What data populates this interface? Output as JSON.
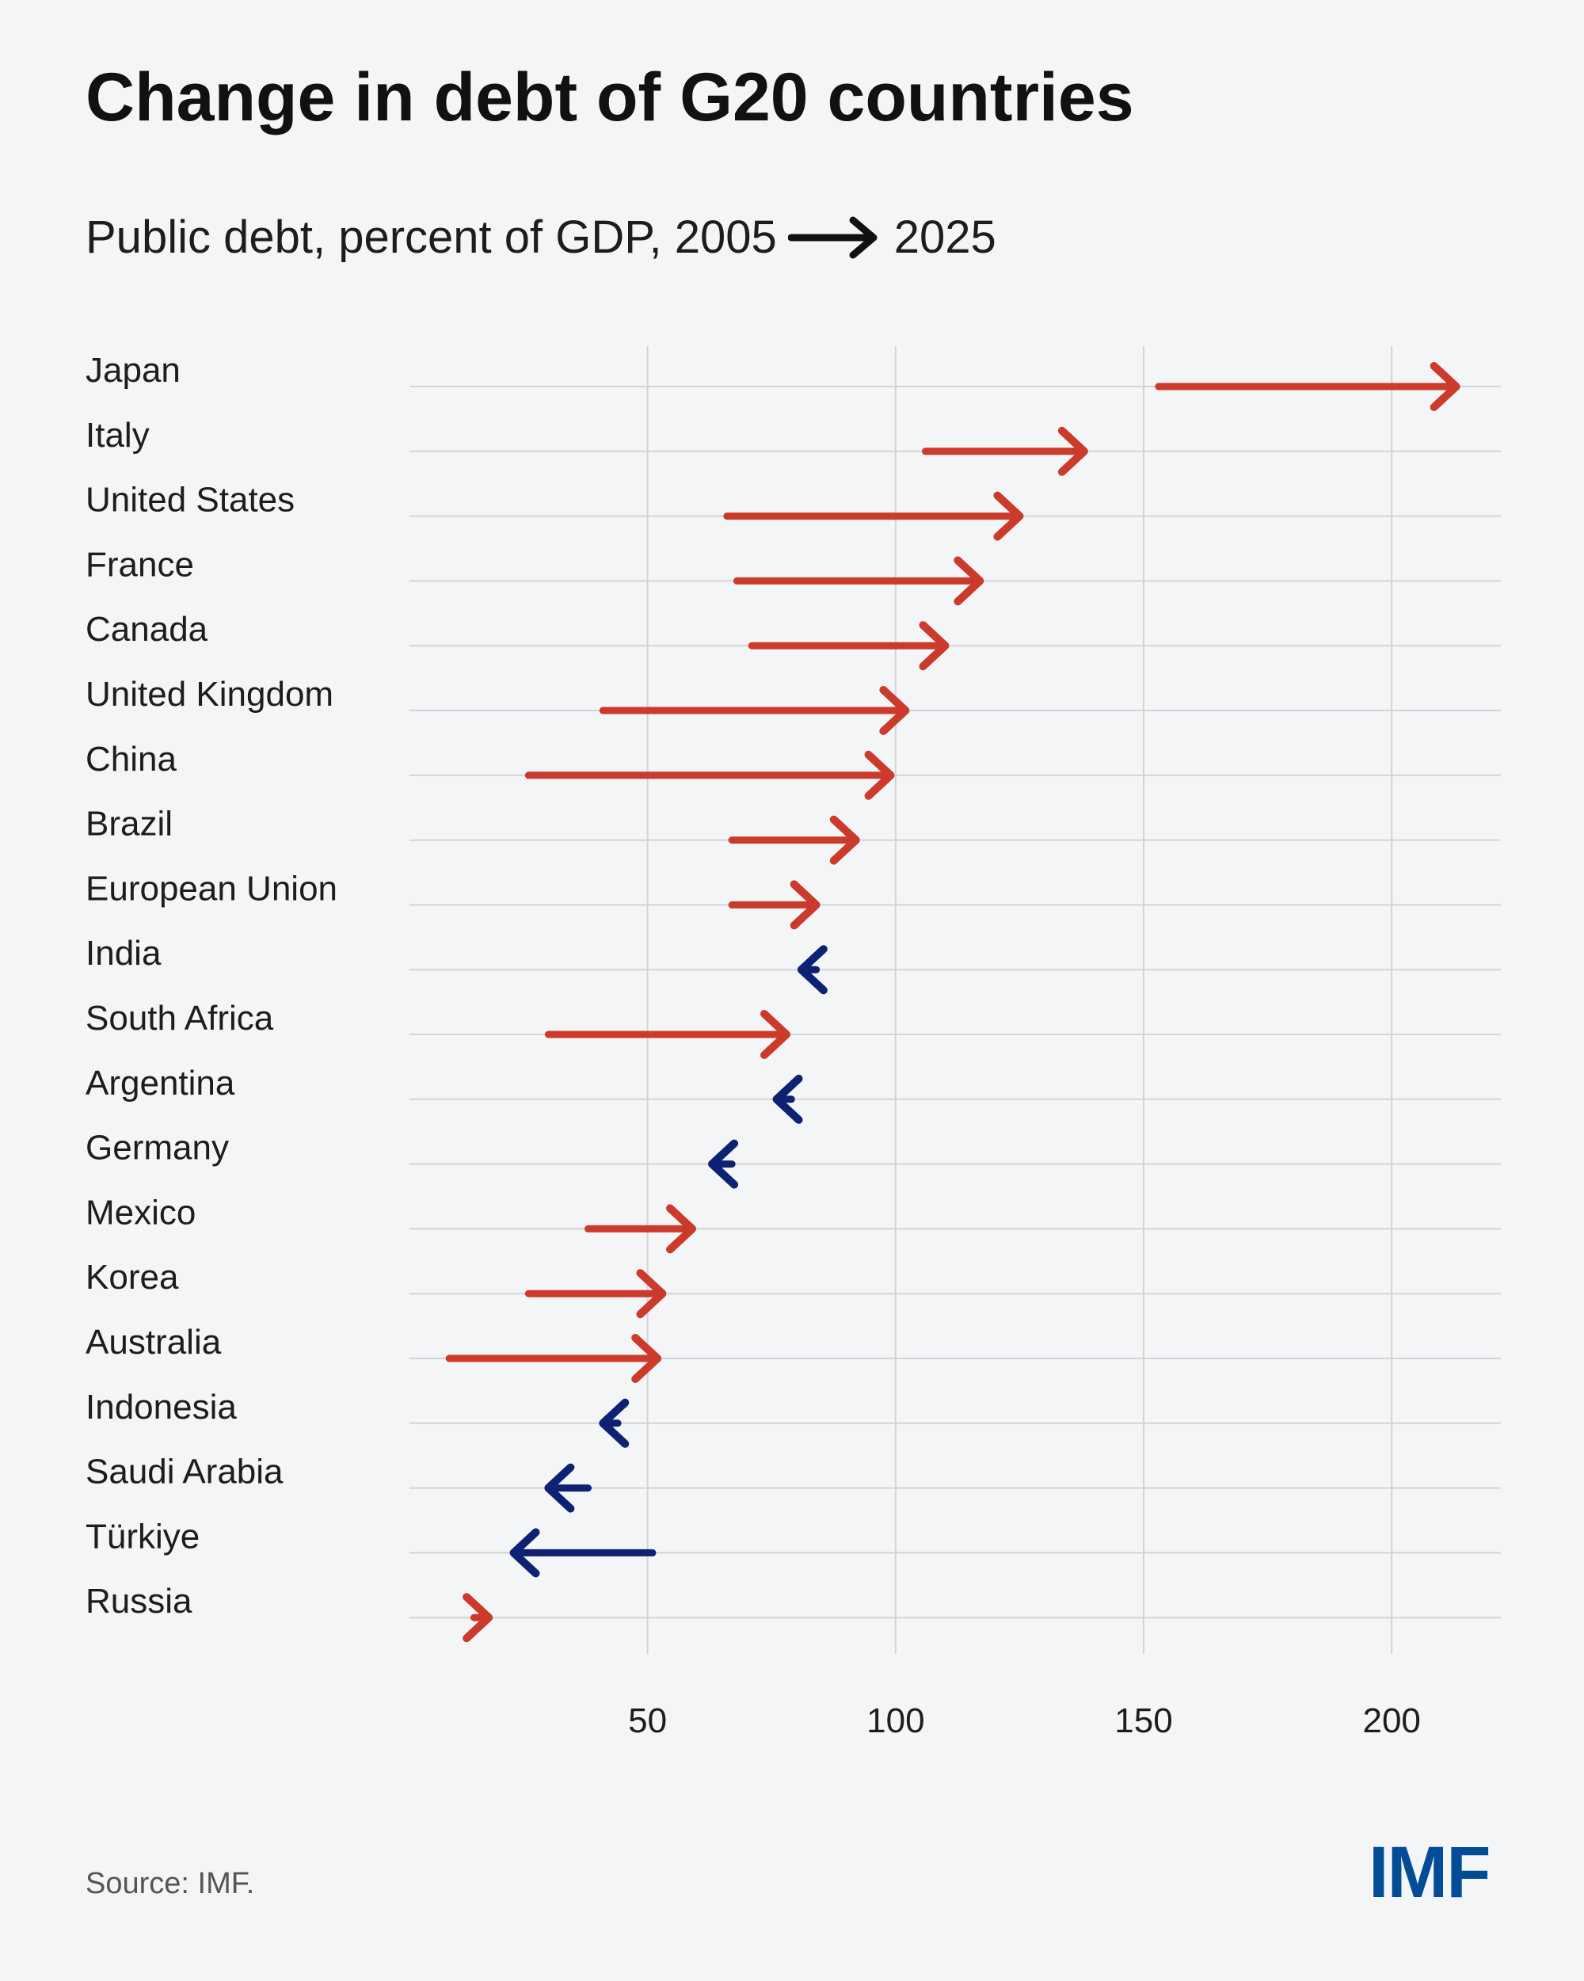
{
  "title": "Change in debt of G20 countries",
  "subtitle": {
    "text_before": "Public debt, percent of GDP, 2005",
    "text_after": "2025"
  },
  "source": "Source: IMF.",
  "logo": "IMF",
  "colors": {
    "increase": "#cc3a2b",
    "decrease": "#0d2272",
    "grid": "#d2d4d8",
    "logo": "#004c97"
  },
  "chart_data": {
    "type": "arrow",
    "title": "Change in debt of G20 countries",
    "xlabel": "Public debt, percent of GDP",
    "xlim": [
      2,
      222
    ],
    "xticks": [
      50,
      100,
      150,
      200
    ],
    "series": [
      {
        "name": "2005"
      },
      {
        "name": "2025"
      }
    ],
    "countries": [
      {
        "name": "Japan",
        "v2005": 153,
        "v2025": 213
      },
      {
        "name": "Italy",
        "v2005": 106,
        "v2025": 138
      },
      {
        "name": "United States",
        "v2005": 66,
        "v2025": 125
      },
      {
        "name": "France",
        "v2005": 68,
        "v2025": 117
      },
      {
        "name": "Canada",
        "v2005": 71,
        "v2025": 110
      },
      {
        "name": "United Kingdom",
        "v2005": 41,
        "v2025": 102
      },
      {
        "name": "China",
        "v2005": 26,
        "v2025": 99
      },
      {
        "name": "Brazil",
        "v2005": 67,
        "v2025": 92
      },
      {
        "name": "European Union",
        "v2005": 67,
        "v2025": 84
      },
      {
        "name": "India",
        "v2005": 84,
        "v2025": 81
      },
      {
        "name": "South Africa",
        "v2005": 30,
        "v2025": 78
      },
      {
        "name": "Argentina",
        "v2005": 79,
        "v2025": 76
      },
      {
        "name": "Germany",
        "v2005": 67,
        "v2025": 63
      },
      {
        "name": "Mexico",
        "v2005": 38,
        "v2025": 59
      },
      {
        "name": "Korea",
        "v2005": 26,
        "v2025": 53
      },
      {
        "name": "Australia",
        "v2005": 10,
        "v2025": 52
      },
      {
        "name": "Indonesia",
        "v2005": 44,
        "v2025": 41
      },
      {
        "name": "Saudi Arabia",
        "v2005": 38,
        "v2025": 30
      },
      {
        "name": "Türkiye",
        "v2005": 51,
        "v2025": 23
      },
      {
        "name": "Russia",
        "v2005": 15,
        "v2025": 18
      }
    ]
  }
}
